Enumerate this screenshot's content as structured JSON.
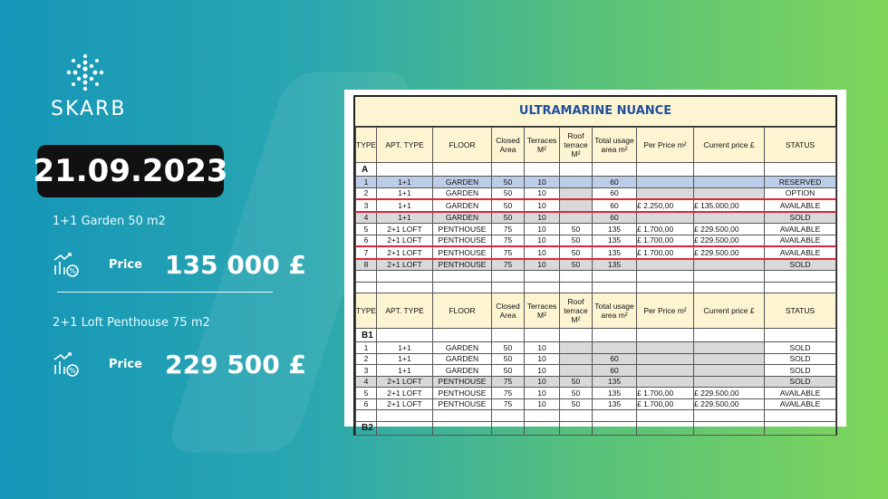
{
  "brand": {
    "name": "SKARB"
  },
  "date": "21.09.2023",
  "offers": [
    {
      "description": "1+1 Garden 50 m2",
      "price_label": "Price",
      "price": "135 000 £"
    },
    {
      "description": "2+1 Loft Penthouse 75 m2",
      "price_label": "Price",
      "price": "229 500 £"
    }
  ],
  "sheet": {
    "title": "ULTRAMARINE NUANCE",
    "headers": [
      "TYPE",
      "APT. TYPE",
      "FLOOR",
      "Closed Area",
      "Terraces M²",
      "Roof terrace M²",
      "Total usage area m²",
      "Per Price m²",
      "Current price £",
      "STATUS"
    ],
    "block_a": {
      "label": "A",
      "rows": [
        [
          "1",
          "1+1",
          "GARDEN",
          "50",
          "10",
          "",
          "60",
          "",
          "",
          "RESERVED"
        ],
        [
          "2",
          "1+1",
          "GARDEN",
          "50",
          "10",
          "",
          "60",
          "",
          "",
          "OPTION"
        ],
        [
          "3",
          "1+1",
          "GARDEN",
          "50",
          "10",
          "",
          "60",
          "£    2.250,00",
          "£       135.000,00",
          "AVAILABLE"
        ],
        [
          "4",
          "1+1",
          "GARDEN",
          "50",
          "10",
          "",
          "60",
          "",
          "",
          "SOLD"
        ],
        [
          "5",
          "2+1 LOFT",
          "PENTHOUSE",
          "75",
          "10",
          "50",
          "135",
          "£    1.700,00",
          "£       229.500,00",
          "AVAILABLE"
        ],
        [
          "6",
          "2+1 LOFT",
          "PENTHOUSE",
          "75",
          "10",
          "50",
          "135",
          "£    1.700,00",
          "£       229.500,00",
          "AVAILABLE"
        ],
        [
          "7",
          "2+1 LOFT",
          "PENTHOUSE",
          "75",
          "10",
          "50",
          "135",
          "£    1.700,00",
          "£       229.500,00",
          "AVAILABLE"
        ],
        [
          "8",
          "2+1 LOFT",
          "PENTHOUSE",
          "75",
          "10",
          "50",
          "135",
          "",
          "",
          "SOLD"
        ]
      ]
    },
    "block_b1": {
      "label": "B1",
      "rows": [
        [
          "1",
          "1+1",
          "GARDEN",
          "50",
          "10",
          "",
          "",
          "",
          "",
          "SOLD"
        ],
        [
          "2",
          "1+1",
          "GARDEN",
          "50",
          "10",
          "",
          "60",
          "",
          "",
          "SOLD"
        ],
        [
          "3",
          "1+1",
          "GARDEN",
          "50",
          "10",
          "",
          "60",
          "",
          "",
          "SOLD"
        ],
        [
          "4",
          "2+1 LOFT",
          "PENTHOUSE",
          "75",
          "10",
          "50",
          "135",
          "",
          "",
          "SOLD"
        ],
        [
          "5",
          "2+1 LOFT",
          "PENTHOUSE",
          "75",
          "10",
          "50",
          "135",
          "£        1.700,00",
          "£        229.500,00",
          "AVAILABLE"
        ],
        [
          "6",
          "2+1 LOFT",
          "PENTHOUSE",
          "75",
          "10",
          "50",
          "135",
          "£        1.700,00",
          "£        229.500,00",
          "AVAILABLE"
        ]
      ]
    },
    "block_b2": {
      "label": "B2"
    }
  },
  "colors": {
    "reserved_row": "#bccde8",
    "sold_row": "#d9d9d9",
    "highlight": "#e0243a",
    "header_bg": "#fdf4d2",
    "title": "#1f4e9e"
  }
}
